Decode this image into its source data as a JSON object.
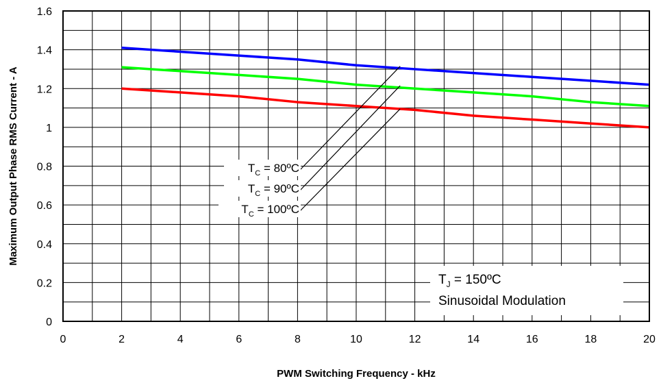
{
  "chart_data": {
    "type": "line",
    "xlabel": "PWM Switching Frequency - kHz",
    "ylabel": "Maximum Output Phase RMS Current - A",
    "xlim": [
      0,
      20
    ],
    "ylim": [
      0,
      1.6
    ],
    "xticks": [
      "0",
      "2",
      "4",
      "6",
      "8",
      "10",
      "12",
      "14",
      "16",
      "18",
      "20"
    ],
    "yticks": [
      "0",
      "0.2",
      "0.4",
      "0.6",
      "0.8",
      "1",
      "1.2",
      "1.4",
      "1.6"
    ],
    "grid": true,
    "series": [
      {
        "name": "TC = 80ºC",
        "color": "#0000ff",
        "x": [
          2,
          4,
          6,
          8,
          10,
          12,
          14,
          16,
          18,
          20
        ],
        "y": [
          1.41,
          1.39,
          1.37,
          1.35,
          1.32,
          1.3,
          1.28,
          1.26,
          1.24,
          1.22
        ]
      },
      {
        "name": "TC = 90ºC",
        "color": "#00ff00",
        "x": [
          2,
          4,
          6,
          8,
          10,
          12,
          14,
          16,
          18,
          20
        ],
        "y": [
          1.31,
          1.29,
          1.27,
          1.25,
          1.22,
          1.2,
          1.18,
          1.16,
          1.13,
          1.11
        ]
      },
      {
        "name": "TC = 100ºC",
        "color": "#ff0000",
        "x": [
          2,
          4,
          6,
          8,
          10,
          12,
          14,
          16,
          18,
          20
        ],
        "y": [
          1.2,
          1.18,
          1.16,
          1.13,
          1.11,
          1.09,
          1.06,
          1.04,
          1.02,
          1.0
        ]
      }
    ],
    "annotations": [
      {
        "series_index": 0,
        "main": "T",
        "sub": "C",
        "rest": " = 80ºC",
        "anchor_x": 11.5,
        "anchor_y": 1.315
      },
      {
        "series_index": 1,
        "main": "T",
        "sub": "C",
        "rest": " = 90ºC",
        "anchor_x": 11.5,
        "anchor_y": 1.215
      },
      {
        "series_index": 2,
        "main": "T",
        "sub": "C",
        "rest": " = 100ºC",
        "anchor_x": 11.5,
        "anchor_y": 1.095
      }
    ],
    "info_box": {
      "line1_main": "T",
      "line1_sub": "J",
      "line1_rest": " = 150ºC",
      "line2": "Sinusoidal Modulation"
    }
  }
}
